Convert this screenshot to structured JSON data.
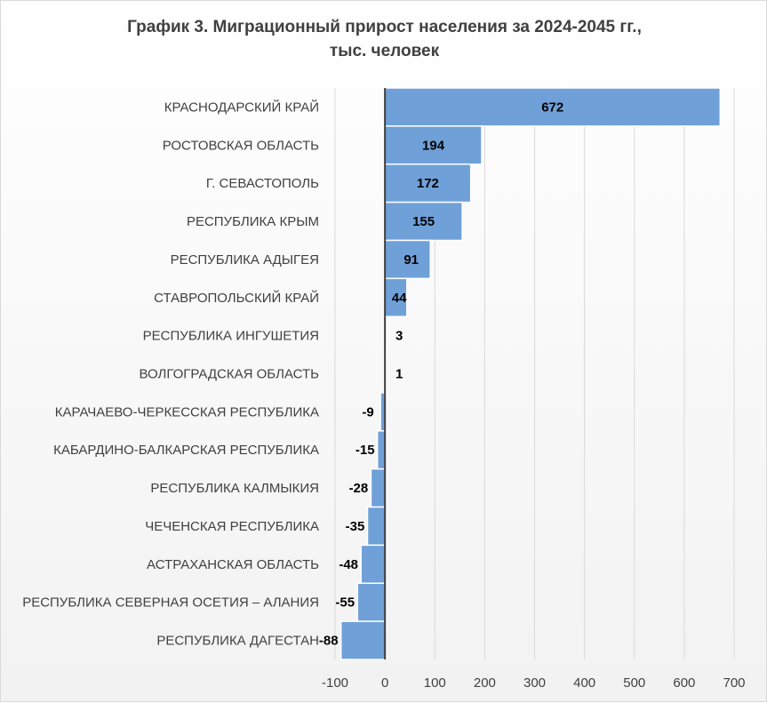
{
  "chart_data": {
    "type": "bar",
    "orientation": "horizontal",
    "title_lines": [
      "График 3. Миграционный прирост населения за 2024-2045 гг.,",
      "тыс. человек"
    ],
    "categories": [
      "КРАСНОДАРСКИЙ КРАЙ",
      "РОСТОВСКАЯ ОБЛАСТЬ",
      "Г. СЕВАСТОПОЛЬ",
      "РЕСПУБЛИКА КРЫМ",
      "РЕСПУБЛИКА АДЫГЕЯ",
      "СТАВРОПОЛЬСКИЙ КРАЙ",
      "РЕСПУБЛИКА ИНГУШЕТИЯ",
      "ВОЛГОГРАДСКАЯ ОБЛАСТЬ",
      "КАРАЧАЕВО-ЧЕРКЕССКАЯ РЕСПУБЛИКА",
      "КАБАРДИНО-БАЛКАРСКАЯ РЕСПУБЛИКА",
      "РЕСПУБЛИКА КАЛМЫКИЯ",
      "ЧЕЧЕНСКАЯ РЕСПУБЛИКА",
      "АСТРАХАНСКАЯ ОБЛАСТЬ",
      "РЕСПУБЛИКА СЕВЕРНАЯ ОСЕТИЯ – АЛАНИЯ",
      "РЕСПУБЛИКА ДАГЕСТАН"
    ],
    "values": [
      672,
      194,
      172,
      155,
      91,
      44,
      3,
      1,
      -9,
      -15,
      -28,
      -35,
      -48,
      -55,
      -88
    ],
    "xlim": [
      -100,
      700
    ],
    "xticks": [
      "-100",
      "0",
      "100",
      "200",
      "300",
      "400",
      "500",
      "600",
      "700"
    ],
    "grid": true,
    "legend": "none",
    "data_labels": true,
    "colors": {
      "bar_fill": "#6fa0d8",
      "bar_stroke": "#ffffff",
      "grid": "#d9d9d9",
      "zero_axis": "#404040",
      "text": "#404040",
      "label_text": "#000000"
    }
  }
}
